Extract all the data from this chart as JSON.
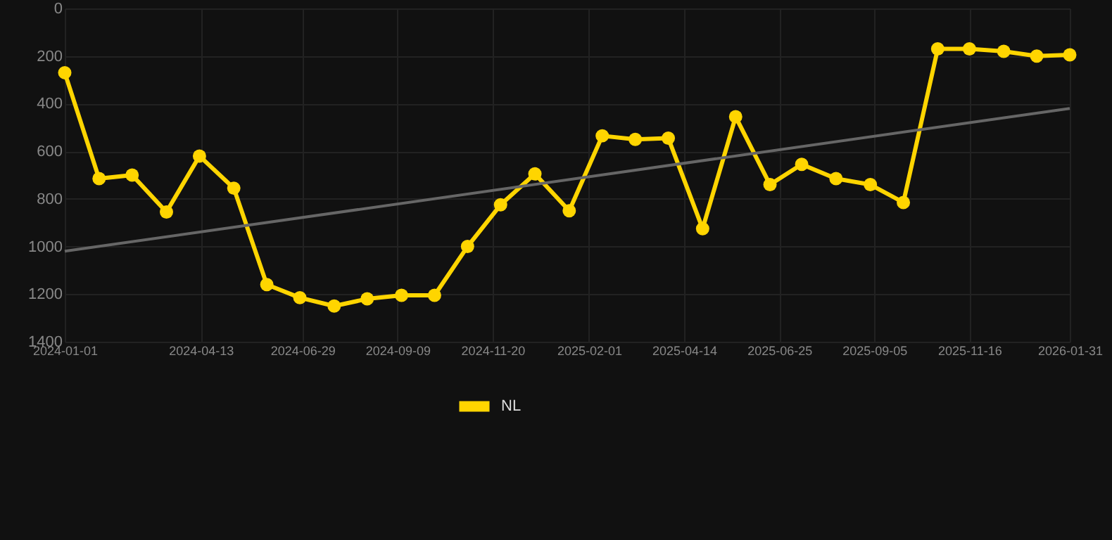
{
  "chart_data": {
    "type": "line",
    "x": [
      "2024-01-01",
      "2024-01-27",
      "2024-02-21",
      "2024-03-18",
      "2024-04-12",
      "2024-05-08",
      "2024-06-02",
      "2024-06-27",
      "2024-07-23",
      "2024-08-17",
      "2024-09-12",
      "2024-10-07",
      "2024-11-01",
      "2024-11-26",
      "2024-12-22",
      "2025-01-17",
      "2025-02-11",
      "2025-03-08",
      "2025-04-02",
      "2025-04-28",
      "2025-05-23",
      "2025-06-18",
      "2025-07-12",
      "2025-08-07",
      "2025-09-02",
      "2025-09-27",
      "2025-10-23",
      "2025-11-16",
      "2025-12-12",
      "2026-01-06",
      "2026-01-31"
    ],
    "series": [
      {
        "name": "NL",
        "color": "#ffd500",
        "marker": "circle",
        "values": [
          270,
          715,
          700,
          855,
          620,
          755,
          1160,
          1215,
          1250,
          1220,
          1205,
          1205,
          1000,
          825,
          695,
          850,
          535,
          550,
          545,
          925,
          455,
          740,
          655,
          715,
          740,
          815,
          170,
          170,
          180,
          200,
          195
        ]
      },
      {
        "type": "line",
        "color": "#666666",
        "marker": "none",
        "x": [
          "2024-01-01",
          "2026-01-31"
        ],
        "values": [
          1020,
          420
        ]
      }
    ],
    "ylim": [
      1400,
      0
    ],
    "yticks": [
      0,
      200,
      400,
      600,
      800,
      1000,
      1200,
      1400
    ],
    "xlim": [
      "2024-01-01",
      "2026-01-31"
    ],
    "xticks": [
      "2024-01-01",
      "2024-04-13",
      "2024-06-29",
      "2024-09-09",
      "2024-11-20",
      "2025-02-01",
      "2025-04-14",
      "2025-06-25",
      "2025-09-05",
      "2025-11-16",
      "2026-01-31"
    ],
    "grid": true,
    "legend": "bottom"
  }
}
